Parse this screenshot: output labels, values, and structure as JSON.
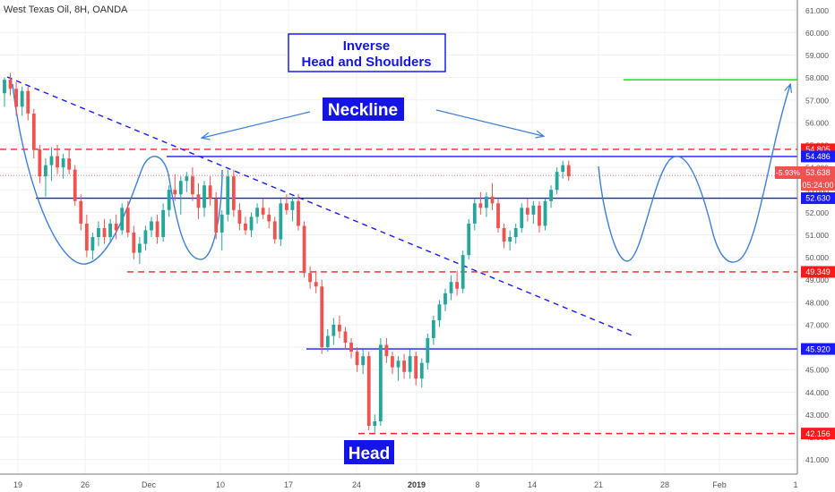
{
  "header": {
    "symbol_title": "West Texas Oil, 8H, OANDA"
  },
  "annotations": {
    "pattern_title_line1": "Inverse",
    "pattern_title_line2": "Head and Shoulders",
    "neckline_label": "Neckline",
    "head_label": "Head"
  },
  "colors": {
    "up": "#26a69a",
    "down": "#ef5350",
    "drawing_blue": "#1a1aff",
    "projection_blue": "#3d7fd6",
    "level_red": "#ff2020",
    "target_green": "#22dd22",
    "label_bg_blue": "#1414e6"
  },
  "chart_data": {
    "type": "candlestick",
    "symbol": "West Texas Oil",
    "timeframe": "8H",
    "source": "OANDA",
    "x_ticks": [
      "19",
      "26",
      "Dec",
      "10",
      "17",
      "24",
      "2019",
      "8",
      "14",
      "21",
      "28",
      "Feb",
      "1"
    ],
    "y_ticks": [
      41.0,
      42.0,
      43.0,
      44.0,
      45.0,
      46.0,
      47.0,
      48.0,
      49.0,
      50.0,
      51.0,
      52.0,
      53.0,
      54.0,
      55.0,
      56.0,
      57.0,
      58.0,
      59.0,
      60.0,
      61.0
    ],
    "ylim": [
      40.35,
      61.45
    ],
    "price_levels": [
      {
        "label": "54.805",
        "value": 54.805,
        "style": "red-dashed"
      },
      {
        "label": "54.486",
        "value": 54.486,
        "style": "blue-solid"
      },
      {
        "label": "52.630",
        "value": 52.63,
        "style": "blue-solid"
      },
      {
        "label": "49.349",
        "value": 49.349,
        "style": "red-dashed"
      },
      {
        "label": "45.920",
        "value": 45.92,
        "style": "blue-solid"
      },
      {
        "label": "42.156",
        "value": 42.156,
        "style": "red-dashed"
      }
    ],
    "current_price": {
      "change": "-5.93%",
      "price": "53.638",
      "countdown": "05:24:00",
      "value": 53.638
    },
    "target_level": 57.9,
    "series": [
      {
        "name": "WTI",
        "ohlc": [
          [
            57.3,
            58.0,
            56.7,
            57.9
          ],
          [
            57.9,
            58.2,
            57.2,
            57.5
          ],
          [
            57.5,
            57.8,
            56.3,
            56.7
          ],
          [
            56.7,
            57.6,
            56.3,
            57.4
          ],
          [
            57.4,
            57.6,
            56.1,
            56.4
          ],
          [
            56.4,
            56.6,
            54.4,
            54.8
          ],
          [
            54.8,
            55.0,
            53.3,
            53.6
          ],
          [
            53.6,
            54.4,
            52.7,
            54.1
          ],
          [
            54.1,
            54.9,
            53.4,
            54.5
          ],
          [
            54.5,
            55.0,
            53.7,
            54.0
          ],
          [
            54.0,
            54.6,
            53.5,
            54.4
          ],
          [
            54.4,
            54.8,
            53.7,
            53.9
          ],
          [
            53.9,
            54.1,
            52.3,
            52.5
          ],
          [
            52.5,
            52.8,
            51.2,
            51.5
          ],
          [
            51.5,
            51.9,
            50.0,
            50.3
          ],
          [
            50.3,
            51.1,
            49.9,
            50.9
          ],
          [
            50.9,
            51.6,
            50.5,
            51.3
          ],
          [
            51.3,
            51.7,
            50.6,
            50.9
          ],
          [
            50.9,
            51.7,
            50.7,
            51.5
          ],
          [
            51.5,
            51.9,
            50.8,
            51.2
          ],
          [
            51.2,
            52.4,
            51.0,
            52.2
          ],
          [
            52.2,
            52.5,
            50.9,
            51.1
          ],
          [
            51.1,
            51.4,
            49.9,
            50.2
          ],
          [
            50.2,
            50.9,
            49.7,
            50.6
          ],
          [
            50.6,
            51.4,
            50.3,
            51.2
          ],
          [
            51.2,
            51.8,
            50.9,
            51.6
          ],
          [
            51.6,
            51.9,
            50.6,
            50.9
          ],
          [
            50.9,
            52.4,
            50.7,
            52.1
          ],
          [
            52.1,
            53.2,
            51.8,
            53.0
          ],
          [
            53.0,
            53.7,
            52.5,
            52.8
          ],
          [
            52.8,
            53.6,
            51.9,
            53.4
          ],
          [
            53.4,
            53.8,
            52.9,
            53.6
          ],
          [
            53.6,
            54.0,
            52.5,
            52.8
          ],
          [
            52.8,
            53.3,
            51.7,
            52.2
          ],
          [
            52.2,
            53.4,
            51.8,
            53.2
          ],
          [
            53.2,
            53.6,
            52.3,
            52.6
          ],
          [
            52.6,
            52.9,
            50.8,
            51.1
          ],
          [
            51.1,
            52.1,
            50.3,
            51.9
          ],
          [
            51.9,
            53.9,
            51.6,
            53.6
          ],
          [
            53.6,
            53.9,
            51.8,
            52.1
          ],
          [
            52.1,
            52.4,
            51.2,
            51.5
          ],
          [
            51.5,
            51.8,
            51.0,
            51.2
          ],
          [
            51.2,
            52.0,
            50.9,
            51.8
          ],
          [
            51.8,
            52.4,
            51.5,
            52.2
          ],
          [
            52.2,
            52.6,
            51.7,
            51.9
          ],
          [
            51.9,
            52.2,
            51.3,
            51.6
          ],
          [
            51.6,
            51.8,
            50.6,
            50.8
          ],
          [
            50.8,
            52.6,
            50.5,
            52.4
          ],
          [
            52.4,
            52.8,
            51.9,
            52.1
          ],
          [
            52.1,
            52.7,
            51.6,
            52.5
          ],
          [
            52.5,
            52.8,
            51.2,
            51.4
          ],
          [
            51.4,
            51.6,
            49.1,
            49.3
          ],
          [
            49.3,
            49.6,
            48.6,
            48.9
          ],
          [
            48.9,
            49.4,
            48.4,
            48.7
          ],
          [
            48.7,
            49.0,
            45.7,
            46.0
          ],
          [
            46.0,
            46.8,
            45.8,
            46.5
          ],
          [
            46.5,
            47.3,
            46.1,
            47.0
          ],
          [
            47.0,
            47.4,
            46.4,
            46.7
          ],
          [
            46.7,
            46.9,
            45.9,
            46.2
          ],
          [
            46.2,
            46.4,
            45.5,
            45.8
          ],
          [
            45.8,
            46.0,
            44.9,
            45.2
          ],
          [
            45.2,
            45.9,
            44.8,
            45.6
          ],
          [
            45.6,
            45.8,
            42.3,
            42.5
          ],
          [
            42.5,
            43.0,
            42.2,
            42.7
          ],
          [
            42.7,
            46.4,
            42.5,
            46.1
          ],
          [
            46.1,
            46.4,
            45.3,
            45.6
          ],
          [
            45.6,
            45.8,
            44.8,
            45.1
          ],
          [
            45.1,
            45.6,
            44.5,
            45.4
          ],
          [
            45.4,
            45.7,
            44.6,
            44.9
          ],
          [
            44.9,
            45.9,
            44.6,
            45.6
          ],
          [
            45.6,
            45.8,
            44.3,
            44.6
          ],
          [
            44.6,
            45.5,
            44.2,
            45.3
          ],
          [
            45.3,
            46.6,
            45.0,
            46.4
          ],
          [
            46.4,
            47.4,
            46.1,
            47.2
          ],
          [
            47.2,
            48.1,
            46.9,
            47.9
          ],
          [
            47.9,
            48.6,
            47.6,
            48.4
          ],
          [
            48.4,
            49.2,
            48.1,
            48.9
          ],
          [
            48.9,
            49.4,
            48.3,
            48.6
          ],
          [
            48.6,
            50.3,
            48.4,
            50.1
          ],
          [
            50.1,
            51.7,
            49.9,
            51.5
          ],
          [
            51.5,
            52.6,
            51.2,
            52.4
          ],
          [
            52.4,
            52.9,
            51.9,
            52.2
          ],
          [
            52.2,
            52.9,
            51.8,
            52.7
          ],
          [
            52.7,
            53.3,
            52.1,
            52.4
          ],
          [
            52.4,
            52.6,
            51.1,
            51.3
          ],
          [
            51.3,
            51.5,
            50.4,
            50.7
          ],
          [
            50.7,
            51.2,
            50.3,
            50.9
          ],
          [
            50.9,
            51.5,
            50.6,
            51.3
          ],
          [
            51.3,
            52.4,
            51.1,
            52.2
          ],
          [
            52.2,
            52.6,
            51.6,
            51.9
          ],
          [
            51.9,
            52.5,
            51.5,
            52.3
          ],
          [
            52.3,
            52.5,
            51.1,
            51.4
          ],
          [
            51.4,
            52.6,
            51.2,
            52.5
          ],
          [
            52.5,
            53.2,
            52.2,
            53.0
          ],
          [
            53.0,
            54.0,
            52.8,
            53.8
          ],
          [
            53.8,
            54.3,
            53.5,
            54.1
          ],
          [
            54.1,
            54.3,
            53.4,
            53.6
          ]
        ]
      }
    ],
    "drawn_lines": [
      {
        "name": "downtrend",
        "style": "blue-dashed"
      },
      {
        "name": "projection-curve",
        "style": "blue-solid"
      },
      {
        "name": "target-line",
        "style": "green-solid"
      }
    ],
    "grid": true,
    "axis_position": "right"
  }
}
